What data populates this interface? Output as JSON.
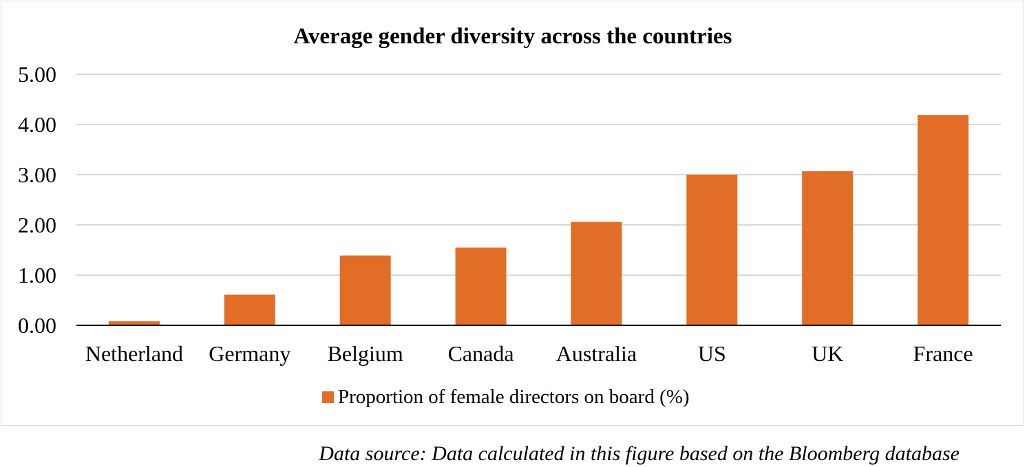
{
  "chart_data": {
    "type": "bar",
    "title": "Average gender diversity across the countries",
    "categories": [
      "Netherland",
      "Germany",
      "Belgium",
      "Canada",
      "Australia",
      "US",
      "UK",
      "France"
    ],
    "series": [
      {
        "name": "Proportion of female directors on board (%)",
        "values": [
          0.08,
          0.61,
          1.39,
          1.55,
          2.06,
          3.0,
          3.07,
          4.19
        ],
        "color": "#e26d27"
      }
    ],
    "y_ticks": [
      "0.00",
      "1.00",
      "2.00",
      "3.00",
      "4.00",
      "5.00"
    ],
    "ylim": [
      0,
      5
    ],
    "grid": true,
    "gridline_color": "#d9d9d9",
    "axis_color": "#000000",
    "legend_position": "bottom"
  },
  "source_note": "Data source: Data calculated in this figure based on the Bloomberg database"
}
